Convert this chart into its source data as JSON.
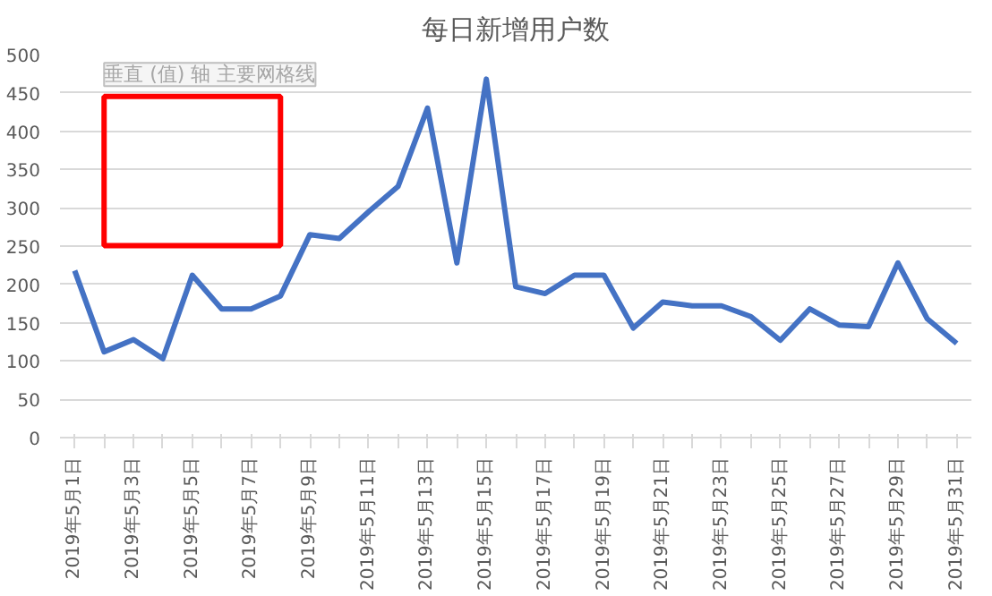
{
  "chart_data": {
    "type": "line",
    "title": "每日新增用户数",
    "categories": [
      "2019年5月1日",
      null,
      "2019年5月3日",
      null,
      "2019年5月5日",
      null,
      "2019年5月7日",
      null,
      "2019年5月9日",
      null,
      "2019年5月11日",
      null,
      "2019年5月13日",
      null,
      "2019年5月15日",
      null,
      "2019年5月17日",
      null,
      "2019年5月19日",
      null,
      "2019年5月21日",
      null,
      "2019年5月23日",
      null,
      "2019年5月25日",
      null,
      "2019年5月27日",
      null,
      "2019年5月29日",
      null,
      "2019年5月31日"
    ],
    "series": [
      {
        "color": "#4472c4",
        "values": [
          218,
          112,
          128,
          103,
          212,
          168,
          168,
          185,
          265,
          260,
          295,
          328,
          430,
          228,
          468,
          197,
          188,
          212,
          212,
          143,
          177,
          172,
          172,
          158,
          127,
          168,
          147,
          145,
          228,
          155,
          123
        ]
      }
    ],
    "ylim": [
      0,
      500
    ],
    "yticks": [
      0,
      50,
      100,
      150,
      200,
      250,
      300,
      350,
      400,
      450,
      500
    ],
    "grid": "y",
    "marker": "none",
    "line_style": "solid",
    "annotations": [
      "垂直 (值) 轴 主要网格线"
    ]
  }
}
